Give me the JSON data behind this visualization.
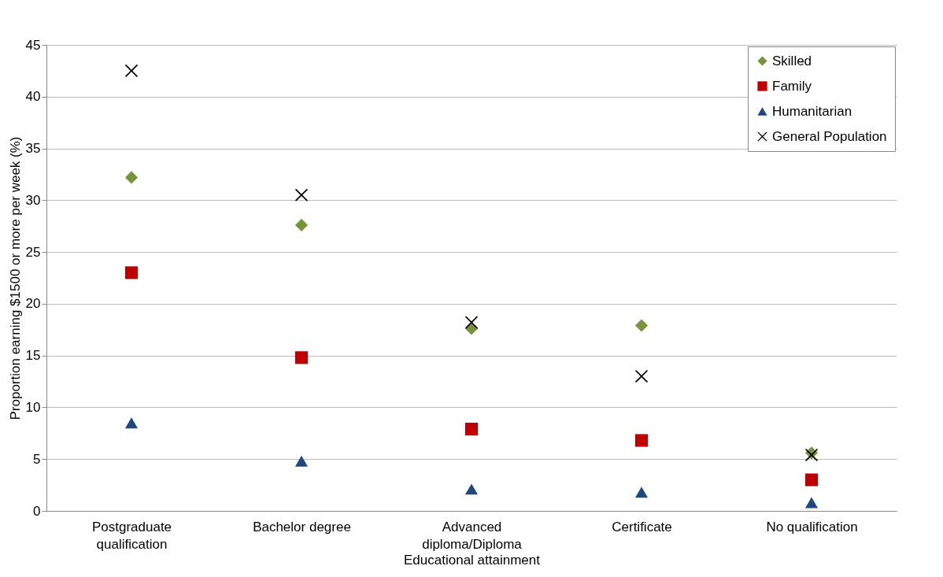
{
  "chart_data": {
    "type": "scatter",
    "xlabel": "Educational attainment",
    "ylabel": "Proportion earning $1500 or more per week (%)",
    "categories": [
      "Postgraduate qualification",
      "Bachelor degree",
      "Advanced diploma/Diploma",
      "Certificate",
      "No qualification"
    ],
    "series": [
      {
        "name": "Skilled",
        "color": "#77933c",
        "marker": "diamond",
        "values": [
          32.2,
          27.6,
          17.6,
          17.9,
          5.6
        ]
      },
      {
        "name": "Family",
        "color": "#c00000",
        "marker": "square",
        "values": [
          23.0,
          14.8,
          7.9,
          6.8,
          3.0
        ]
      },
      {
        "name": "Humanitarian",
        "color": "#1f497d",
        "marker": "triangle",
        "values": [
          8.5,
          4.8,
          2.1,
          1.8,
          0.8
        ]
      },
      {
        "name": "General Population",
        "color": "#000000",
        "marker": "cross",
        "values": [
          42.5,
          30.5,
          18.2,
          13.0,
          5.4
        ]
      }
    ],
    "ylim": [
      0,
      45
    ],
    "yticks": [
      0,
      5,
      10,
      15,
      20,
      25,
      30,
      35,
      40,
      45
    ],
    "grid": "y",
    "legend": "top right"
  }
}
